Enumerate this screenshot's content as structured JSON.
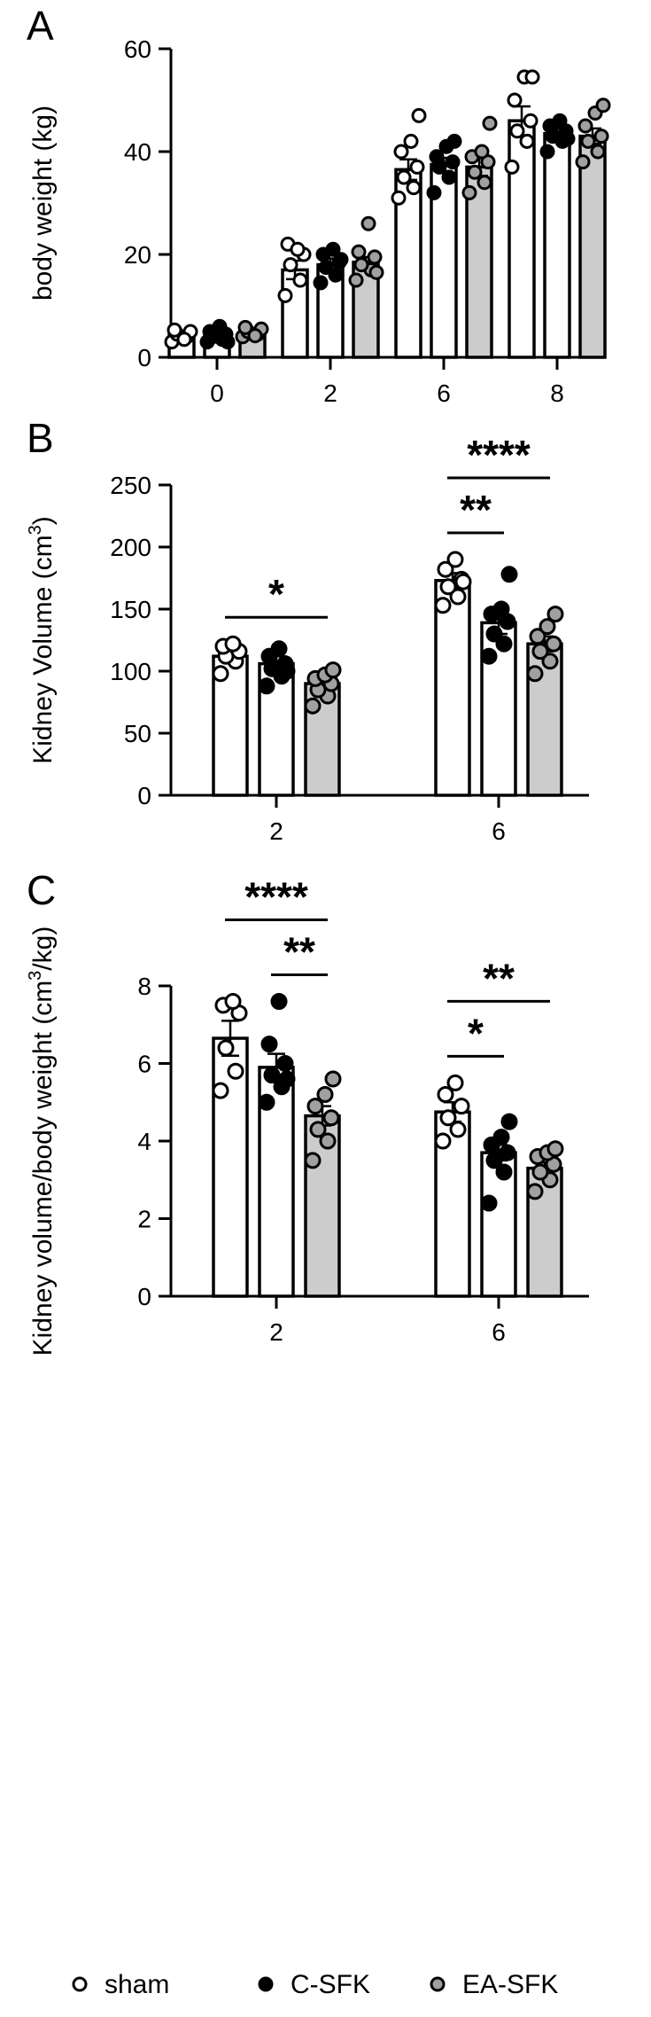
{
  "figure": {
    "legend": [
      {
        "label": "sham",
        "fill": "#ffffff",
        "marker": "open-circle"
      },
      {
        "label": "C-SFK",
        "fill": "#000000",
        "marker": "filled-circle"
      },
      {
        "label": "EA-SFK",
        "fill": "#a0a0a0",
        "marker": "gray-circle"
      }
    ]
  },
  "chart_data": [
    {
      "type": "bar",
      "panel": "A",
      "title": "",
      "xlabel": "",
      "ylabel": "body weight (kg)",
      "ylim": [
        0,
        60
      ],
      "yticks": [
        0,
        20,
        40,
        60
      ],
      "categories": [
        "0",
        "2",
        "6",
        "8"
      ],
      "series": [
        {
          "name": "sham",
          "fill": "#ffffff",
          "dot": "#ffffff",
          "values": [
            4.3,
            17.0,
            36.5,
            46.0
          ],
          "sem": [
            0.5,
            1.8,
            2.0,
            2.8
          ],
          "points": [
            [
              3.0,
              4.0,
              4.5,
              5.0,
              5.3,
              3.5
            ],
            [
              12.0,
              15.0,
              18.0,
              20.0,
              22.0,
              21.0
            ],
            [
              31.0,
              33.0,
              35.0,
              37.0,
              40.0,
              42.0,
              47.0
            ],
            [
              37.0,
              42.0,
              44.0,
              46.0,
              50.0,
              54.5,
              54.5
            ]
          ]
        },
        {
          "name": "C-SFK",
          "fill": "#ffffff",
          "dot": "#000000",
          "values": [
            4.0,
            18.0,
            37.5,
            43.5
          ],
          "sem": [
            0.4,
            1.2,
            1.3,
            1.0
          ],
          "points": [
            [
              3.0,
              3.5,
              4.0,
              4.5,
              5.0,
              6.0,
              3.0
            ],
            [
              14.5,
              16.0,
              17.5,
              18.5,
              20.0,
              21.0,
              19.0
            ],
            [
              32.0,
              35.0,
              37.0,
              38.0,
              39.0,
              41.0,
              42.0
            ],
            [
              40.0,
              42.0,
              43.0,
              44.0,
              45.0,
              46.0,
              42.5
            ]
          ]
        },
        {
          "name": "EA-SFK",
          "fill": "#cccccc",
          "dot": "#a0a0a0",
          "values": [
            4.8,
            18.5,
            37.0,
            43.0
          ],
          "sem": [
            0.3,
            1.0,
            1.7,
            1.5
          ],
          "points": [
            [
              4.0,
              4.5,
              5.0,
              5.5,
              5.8,
              4.2
            ],
            [
              15.0,
              17.0,
              18.0,
              19.5,
              20.5,
              26.0,
              16.5
            ],
            [
              32.0,
              34.0,
              36.0,
              38.0,
              39.0,
              40.0,
              45.5
            ],
            [
              38.0,
              40.0,
              42.0,
              43.0,
              45.0,
              47.5,
              49.0
            ]
          ]
        }
      ]
    },
    {
      "type": "bar",
      "panel": "B",
      "title": "",
      "xlabel": "",
      "ylabel": "Kidney Volume (cm",
      "ylabel_sup": "3",
      "ylabel_end": ")",
      "ylim": [
        0,
        250
      ],
      "yticks": [
        0,
        50,
        100,
        150,
        200,
        250
      ],
      "categories": [
        "2",
        "6"
      ],
      "series": [
        {
          "name": "sham",
          "fill": "#ffffff",
          "dot": "#ffffff",
          "values": [
            112,
            173
          ],
          "sem": [
            5,
            6
          ],
          "points": [
            [
              98,
              108,
              112,
              116,
              120,
              122
            ],
            [
              153,
              160,
              168,
              174,
              182,
              190,
              172
            ]
          ]
        },
        {
          "name": "C-SFK",
          "fill": "#ffffff",
          "dot": "#000000",
          "values": [
            106,
            139
          ],
          "sem": [
            6,
            9
          ],
          "points": [
            [
              88,
              96,
              102,
              106,
              112,
              118,
              100
            ],
            [
              112,
              122,
              130,
              140,
              146,
              150,
              178
            ]
          ]
        },
        {
          "name": "EA-SFK",
          "fill": "#cccccc",
          "dot": "#a0a0a0",
          "values": [
            90,
            122
          ],
          "sem": [
            4,
            6
          ],
          "points": [
            [
              72,
              80,
              85,
              90,
              94,
              97,
              101
            ],
            [
              98,
              108,
              116,
              122,
              128,
              136,
              146
            ]
          ]
        }
      ],
      "significance": [
        {
          "category": 0,
          "from": 0,
          "to": 2,
          "label": "*",
          "level": 0
        },
        {
          "category": 1,
          "from": 0,
          "to": 1,
          "label": "**",
          "level": 0
        },
        {
          "category": 1,
          "from": 0,
          "to": 2,
          "label": "****",
          "level": 1
        }
      ]
    },
    {
      "type": "bar",
      "panel": "C",
      "title": "",
      "xlabel": "",
      "ylabel": "Kidney volume/body weight (cm",
      "ylabel_sup": "3",
      "ylabel_end": "/kg)",
      "ylim": [
        0,
        8
      ],
      "yticks": [
        0,
        2,
        4,
        6,
        8
      ],
      "categories": [
        "2",
        "6"
      ],
      "series": [
        {
          "name": "sham",
          "fill": "#ffffff",
          "dot": "#ffffff",
          "values": [
            6.65,
            4.75
          ],
          "sem": [
            0.45,
            0.25
          ],
          "points": [
            [
              5.3,
              5.8,
              6.4,
              7.3,
              7.5,
              7.6
            ],
            [
              4.0,
              4.3,
              4.6,
              4.9,
              5.2,
              5.5
            ]
          ]
        },
        {
          "name": "C-SFK",
          "fill": "#ffffff",
          "dot": "#000000",
          "values": [
            5.9,
            3.7
          ],
          "sem": [
            0.35,
            0.2
          ],
          "points": [
            [
              5.0,
              5.4,
              5.7,
              6.0,
              6.5,
              7.6,
              5.6
            ],
            [
              2.4,
              3.2,
              3.5,
              3.7,
              3.9,
              4.1,
              4.5
            ]
          ]
        },
        {
          "name": "EA-SFK",
          "fill": "#cccccc",
          "dot": "#a0a0a0",
          "values": [
            4.65,
            3.3
          ],
          "sem": [
            0.25,
            0.15
          ],
          "points": [
            [
              3.5,
              4.0,
              4.3,
              4.6,
              4.9,
              5.2,
              5.6
            ],
            [
              2.7,
              3.0,
              3.2,
              3.4,
              3.6,
              3.7,
              3.8
            ]
          ]
        }
      ],
      "significance": [
        {
          "category": 0,
          "from": 1,
          "to": 2,
          "label": "**",
          "level": 0
        },
        {
          "category": 0,
          "from": 0,
          "to": 2,
          "label": "****",
          "level": 1
        },
        {
          "category": 1,
          "from": 0,
          "to": 1,
          "label": "*",
          "level": 0
        },
        {
          "category": 1,
          "from": 0,
          "to": 2,
          "label": "**",
          "level": 1
        }
      ]
    }
  ]
}
